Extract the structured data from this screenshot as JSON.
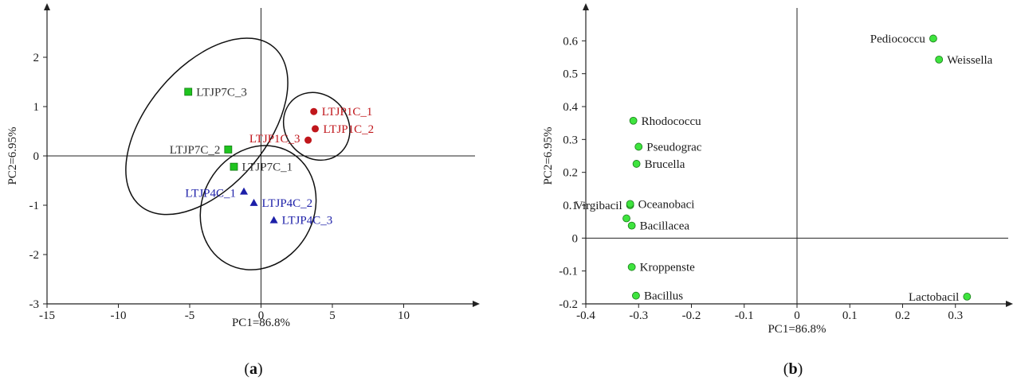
{
  "chart_data": [
    {
      "type": "scatter",
      "panel_label": "a",
      "xlabel": "PC1=86.8%",
      "ylabel": "PC2=6.95%",
      "xlim": [
        -15,
        15
      ],
      "ylim": [
        -3,
        3
      ],
      "xticks": [
        -15,
        -10,
        -5,
        0,
        5,
        10
      ],
      "yticks": [
        -3,
        -2,
        -1,
        0,
        1,
        2
      ],
      "grid": false,
      "series": [
        {
          "marker": "circle",
          "color": "#c0161b",
          "points": [
            {
              "label": "LTJP1C_1",
              "x": 3.7,
              "y": 0.9
            },
            {
              "label": "LTJP1C_2",
              "x": 3.8,
              "y": 0.55
            },
            {
              "label": "LTJP1C_3",
              "x": 3.3,
              "y": 0.32
            }
          ]
        },
        {
          "marker": "square",
          "color": "#1fc41f",
          "points": [
            {
              "label": "LTJP7C_3",
              "x": -5.1,
              "y": 1.3
            },
            {
              "label": "LTJP7C_2",
              "x": -2.3,
              "y": 0.13
            },
            {
              "label": "LTJP7C_1",
              "x": -1.9,
              "y": -0.22
            }
          ]
        },
        {
          "marker": "triangle",
          "color": "#1c1fa8",
          "points": [
            {
              "label": "LTJP4C_1",
              "x": -1.2,
              "y": -0.72
            },
            {
              "label": "LTJP4C_2",
              "x": -0.5,
              "y": -0.95
            },
            {
              "label": "LTJP4C_3",
              "x": 0.9,
              "y": -1.3
            }
          ]
        }
      ],
      "ellipses": [
        {
          "cx": 3.9,
          "cy": 0.6,
          "rx": 2.2,
          "ry": 0.72,
          "rotate_deg": -40
        },
        {
          "cx": -3.8,
          "cy": 0.6,
          "rx": 4.2,
          "ry": 2.1,
          "rotate_deg": 40
        },
        {
          "cx": -0.2,
          "cy": -1.05,
          "rx": 3.9,
          "ry": 1.3,
          "rotate_deg": 30
        }
      ]
    },
    {
      "type": "scatter",
      "panel_label": "b",
      "xlabel": "PC1=86.8%",
      "ylabel": "PC2=6.95%",
      "xlim": [
        -0.4,
        0.4
      ],
      "ylim": [
        -0.2,
        0.7
      ],
      "xticks": [
        -0.4,
        -0.3,
        -0.2,
        -0.1,
        0,
        0.1,
        0.2,
        0.3
      ],
      "yticks": [
        -0.2,
        -0.1,
        0,
        0.1,
        0.2,
        0.3,
        0.4,
        0.5,
        0.6
      ],
      "grid": false,
      "series": [
        {
          "marker": "circle",
          "color": "#3ee43e",
          "points": [
            {
              "label": "Pediococcu",
              "x": 0.258,
              "y": 0.607,
              "anchor": "end"
            },
            {
              "label": "Weissella",
              "x": 0.269,
              "y": 0.543,
              "anchor": "start"
            },
            {
              "label": "Rhodococcu",
              "x": -0.31,
              "y": 0.357,
              "anchor": "start"
            },
            {
              "label": "Pseudograc",
              "x": -0.3,
              "y": 0.278,
              "anchor": "start"
            },
            {
              "label": "Brucella",
              "x": -0.304,
              "y": 0.226,
              "anchor": "start"
            },
            {
              "label": "Virgibacil",
              "x": -0.316,
              "y": 0.1,
              "anchor": "end"
            },
            {
              "label": "Oceanobaci",
              "x": -0.316,
              "y": 0.104,
              "anchor": "start"
            },
            {
              "label": "",
              "x": -0.323,
              "y": 0.06,
              "anchor": "start"
            },
            {
              "label": "Bacillacea",
              "x": -0.313,
              "y": 0.038,
              "anchor": "start"
            },
            {
              "label": "Kroppenste",
              "x": -0.313,
              "y": -0.088,
              "anchor": "start"
            },
            {
              "label": "Bacillus",
              "x": -0.305,
              "y": -0.175,
              "anchor": "start"
            },
            {
              "label": "Lactobacil",
              "x": 0.322,
              "y": -0.178,
              "anchor": "end"
            }
          ]
        }
      ]
    }
  ]
}
